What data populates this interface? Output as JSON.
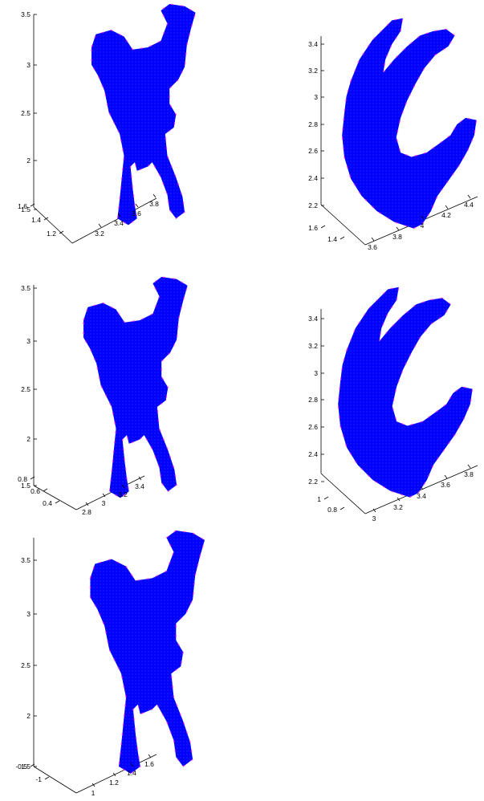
{
  "colors": {
    "primary": "#0000ff",
    "edge": "#ff33dd",
    "axis": "#000000"
  },
  "chart_data": [
    {
      "type": "scatter",
      "title": "",
      "xlabel": "",
      "ylabel": "",
      "zlabel": "",
      "projection": "3d",
      "grid": false,
      "view": "front",
      "z_ticks": [
        "1.5",
        "2",
        "2.5",
        "3",
        "3.5"
      ],
      "y_ticks": [
        "1.6",
        "1.4",
        "1.2"
      ],
      "x_ticks": [
        "3.2",
        "3.4",
        "3.6",
        "3.8"
      ],
      "series": [
        {
          "color": "#0000ff"
        },
        {
          "color": "#ff33dd"
        }
      ]
    },
    {
      "type": "scatter",
      "title": "",
      "xlabel": "",
      "ylabel": "",
      "zlabel": "",
      "projection": "3d",
      "grid": false,
      "view": "side",
      "z_ticks": [
        "2.2",
        "2.4",
        "2.6",
        "2.8",
        "3",
        "3.2",
        "3.4"
      ],
      "y_ticks": [
        "1.6",
        "1.4"
      ],
      "x_ticks": [
        "3.6",
        "3.8",
        "4",
        "4.2",
        "4.4"
      ],
      "series": [
        {
          "color": "#0000ff"
        },
        {
          "color": "#ff33dd"
        }
      ]
    },
    {
      "type": "scatter",
      "title": "",
      "xlabel": "",
      "ylabel": "",
      "zlabel": "",
      "projection": "3d",
      "grid": false,
      "view": "front",
      "z_ticks": [
        "1.5",
        "2",
        "2.5",
        "3",
        "3.5"
      ],
      "y_ticks": [
        "0.8",
        "0.6",
        "0.4"
      ],
      "x_ticks": [
        "2.8",
        "3",
        "3.2",
        "3.4"
      ],
      "series": [
        {
          "color": "#0000ff"
        },
        {
          "color": "#ff33dd"
        }
      ]
    },
    {
      "type": "scatter",
      "title": "",
      "xlabel": "",
      "ylabel": "",
      "zlabel": "",
      "projection": "3d",
      "grid": false,
      "view": "side",
      "z_ticks": [
        "2.2",
        "2.4",
        "2.6",
        "2.8",
        "3",
        "3.2",
        "3.4"
      ],
      "y_ticks": [
        "1",
        "0.8"
      ],
      "x_ticks": [
        "3",
        "3.2",
        "3.4",
        "3.6",
        "3.8"
      ],
      "series": [
        {
          "color": "#0000ff"
        },
        {
          "color": "#ff33dd"
        }
      ]
    },
    {
      "type": "scatter",
      "title": "",
      "xlabel": "",
      "ylabel": "",
      "zlabel": "",
      "projection": "3d",
      "grid": false,
      "view": "front",
      "z_ticks": [
        "1.5",
        "2",
        "2.5",
        "3",
        "3.5"
      ],
      "y_ticks": [
        "-0.5",
        "-1"
      ],
      "x_ticks": [
        "1",
        "1.2",
        "1.4",
        "1.6"
      ],
      "series": [
        {
          "color": "#0000ff"
        },
        {
          "color": "#ff33dd"
        }
      ]
    }
  ]
}
